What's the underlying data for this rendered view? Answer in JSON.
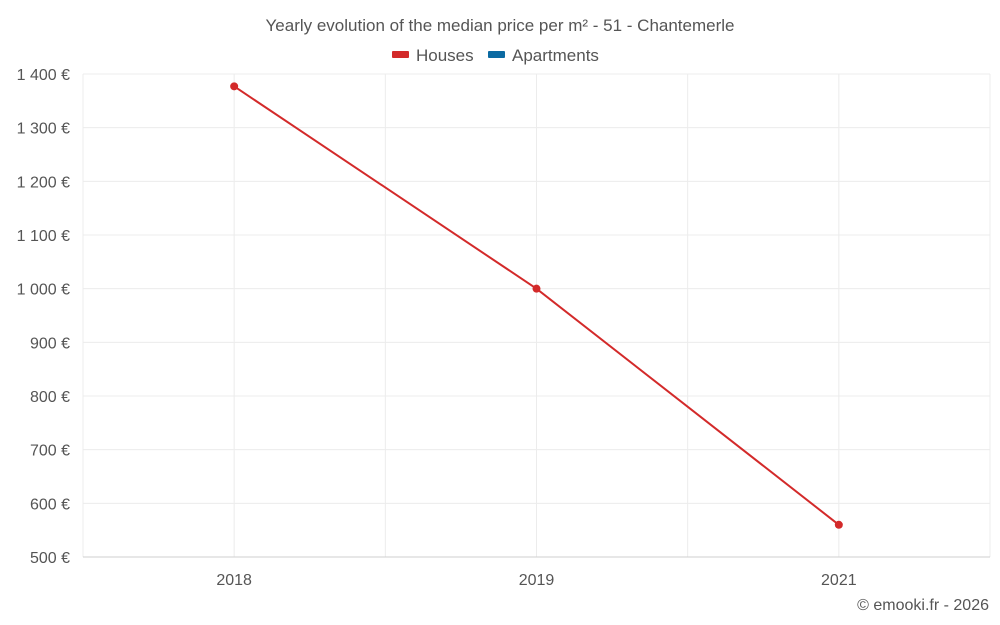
{
  "chart_data": {
    "type": "line",
    "title": "Yearly evolution of the median price per m² - 51 - Chantemerle",
    "categories": [
      "2018",
      "2019",
      "2021"
    ],
    "series": [
      {
        "name": "Houses",
        "color": "#d32a2a",
        "values": [
          1377,
          1000,
          560
        ]
      },
      {
        "name": "Apartments",
        "color": "#0b6aa2",
        "values": [
          null,
          null,
          null
        ]
      }
    ],
    "ylim": [
      500,
      1400
    ],
    "yticks": [
      1400,
      1300,
      1200,
      1100,
      1000,
      900,
      800,
      700,
      600,
      500
    ],
    "ytick_labels": [
      "1 400 €",
      "1 300 €",
      "1 200 €",
      "1 100 €",
      "1 000 €",
      "900 €",
      "800 €",
      "700 €",
      "600 €",
      "500 €"
    ],
    "xlabel": "",
    "ylabel": "",
    "grid": true,
    "legend_position": "top-center"
  },
  "legend": {
    "houses_label": "Houses",
    "apartments_label": "Apartments"
  },
  "credit": "© emooki.fr - 2026"
}
